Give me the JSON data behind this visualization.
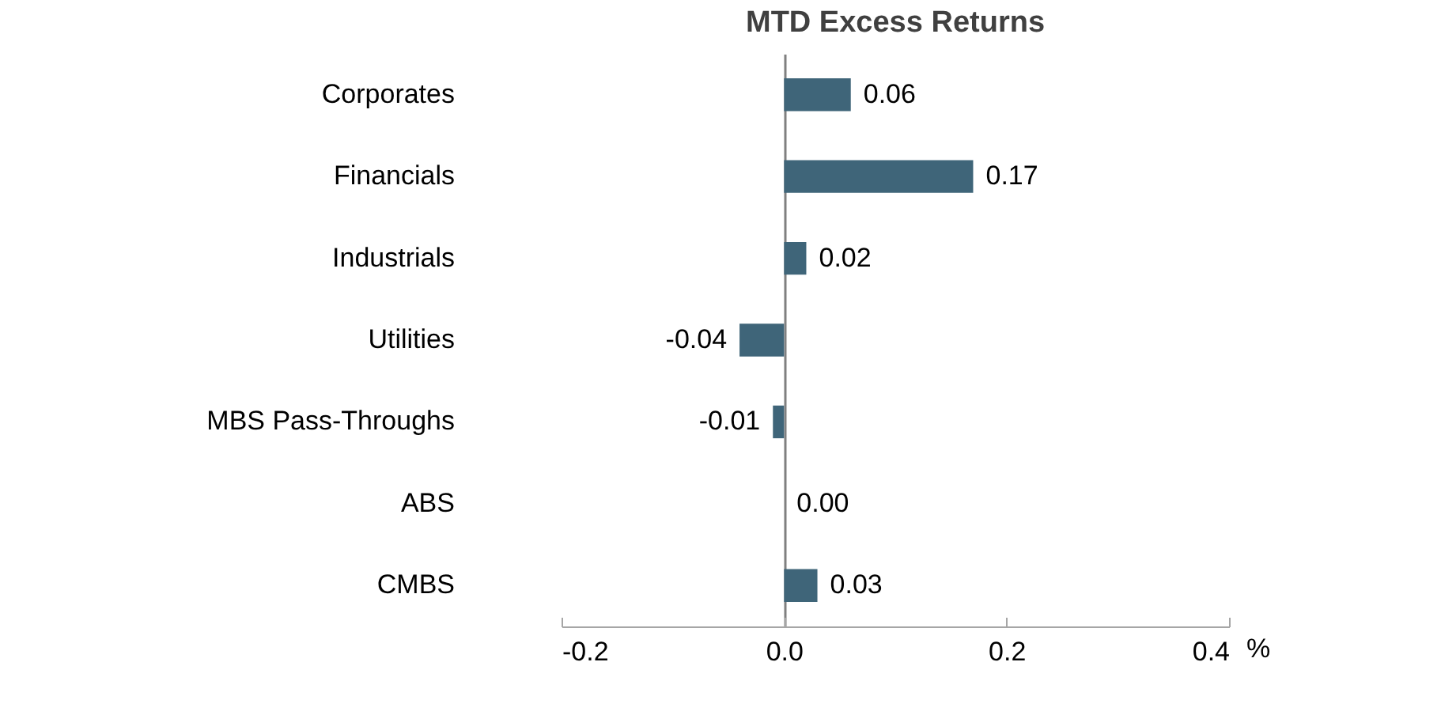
{
  "chart_data": {
    "type": "bar",
    "orientation": "horizontal",
    "title": "MTD Excess Returns",
    "xlabel": "%",
    "categories": [
      "Corporates",
      "Financials",
      "Industrials",
      "Utilities",
      "MBS Pass-Throughs",
      "ABS",
      "CMBS"
    ],
    "values": [
      0.06,
      0.17,
      0.02,
      -0.04,
      -0.01,
      0.0,
      0.03
    ],
    "color": "#3f6579",
    "xlim": [
      -0.2,
      0.4
    ],
    "xticks": [
      -0.2,
      {
        "value": 0,
        "label": "0.0"
      },
      0.2,
      0.4
    ],
    "value_labels": [
      "0.06",
      "0.17",
      "0.02",
      "-0.04",
      "-0.01",
      "0.00",
      "0.03"
    ]
  }
}
